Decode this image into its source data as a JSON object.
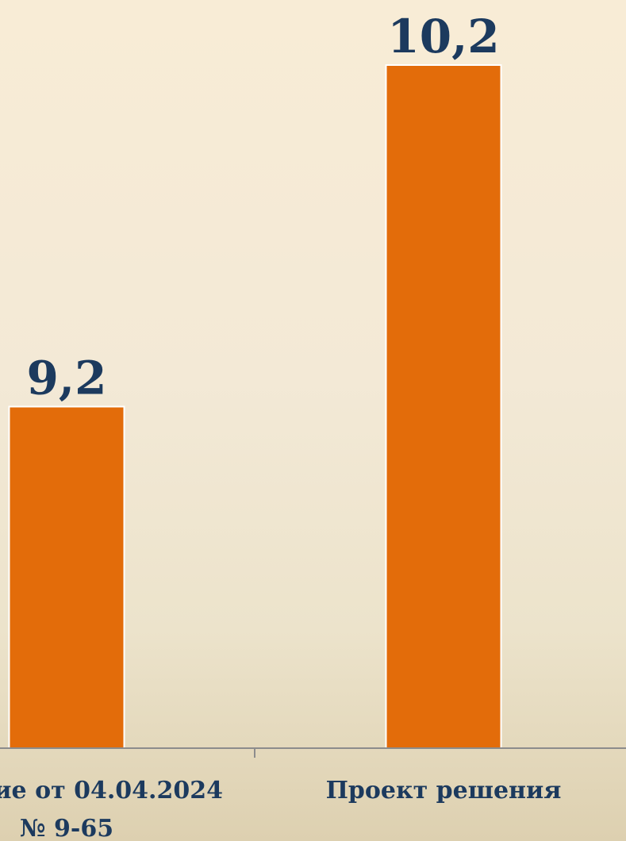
{
  "chart_data": {
    "type": "bar",
    "categories": [
      [
        "ние от 04.04.2024",
        "№ 9-65"
      ],
      [
        "Проект решения"
      ]
    ],
    "values": [
      9.2,
      10.2
    ],
    "value_labels": [
      "9,2",
      "10,2"
    ],
    "title": "",
    "xlabel": "",
    "ylabel": "",
    "ylim": [
      8.2,
      10.2
    ],
    "grid": false,
    "colors": {
      "bar": "#e36c0a",
      "bar_stroke": "#ffffff",
      "label": "#1c3a5e",
      "axis": "#8c8c8c"
    }
  }
}
